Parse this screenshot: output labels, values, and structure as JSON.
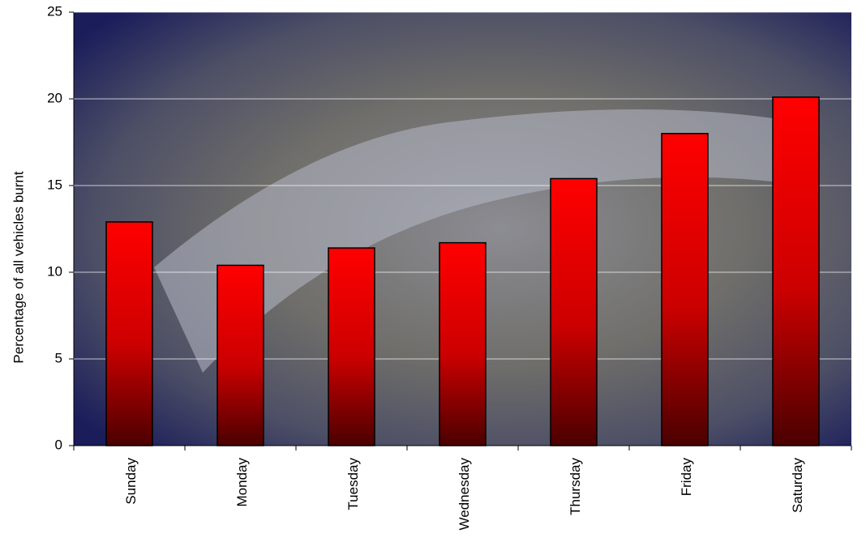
{
  "chart_data": {
    "type": "bar",
    "y_label": "Percentage of all vehicles burnt",
    "categories": [
      "Sunday",
      "Monday",
      "Tuesday",
      "Wednesday",
      "Thursday",
      "Friday",
      "Saturday"
    ],
    "values": [
      12.9,
      10.4,
      11.4,
      11.7,
      15.4,
      18,
      20.1
    ],
    "color": "#ff0000",
    "ylim": [
      0,
      25
    ],
    "yticks": [
      0,
      5,
      10,
      15,
      20,
      25
    ],
    "grid": true
  }
}
